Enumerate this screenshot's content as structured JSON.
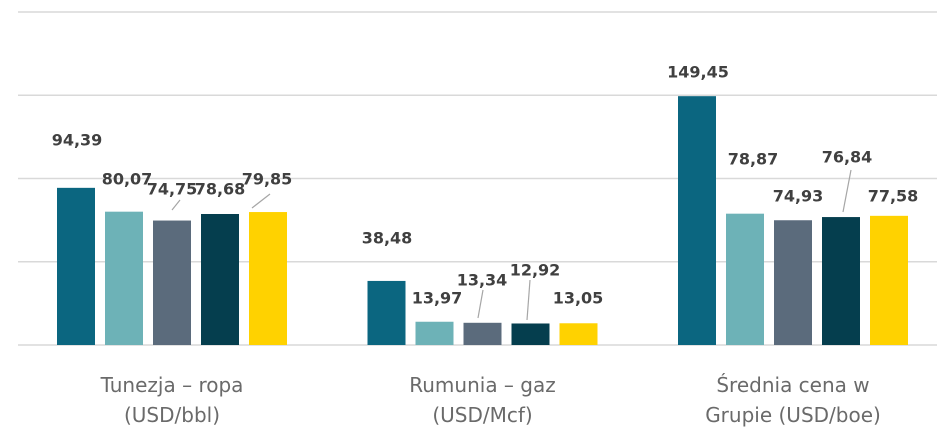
{
  "chart_data": {
    "type": "bar",
    "categories": [
      "Tunezja – ropa (USD/bbl)",
      "Rumunia – gaz (USD/Mcf)",
      "Średnia cena w Grupie (USD/boe)"
    ],
    "series": [
      {
        "color": "#0b6680",
        "values": [
          94.39,
          38.48,
          149.45
        ],
        "value_labels": [
          "94,39",
          "38,48",
          "149,45"
        ]
      },
      {
        "color": "#6db2b7",
        "values": [
          80.07,
          13.97,
          78.87
        ],
        "value_labels": [
          "80,07",
          "13,97",
          "78,87"
        ]
      },
      {
        "color": "#5b6b7c",
        "values": [
          74.75,
          13.34,
          74.93
        ],
        "value_labels": [
          "74,75",
          "13,34",
          "74,93"
        ]
      },
      {
        "color": "#053e4e",
        "values": [
          78.68,
          12.92,
          76.84
        ],
        "value_labels": [
          "78,68",
          "12,92",
          "76,84"
        ]
      },
      {
        "color": "#ffd200",
        "values": [
          79.85,
          13.05,
          77.58
        ],
        "value_labels": [
          "79,85",
          "13,05",
          "77,58"
        ]
      }
    ],
    "ylim": [
      0,
      200
    ],
    "yticks": [
      0,
      50,
      100,
      150,
      200
    ],
    "grid": true
  }
}
